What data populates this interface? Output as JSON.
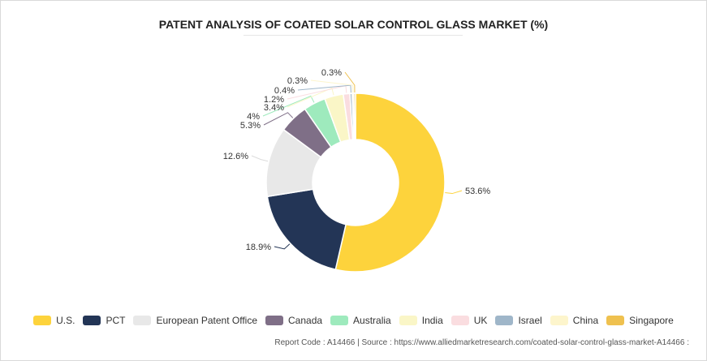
{
  "chart_data": {
    "type": "pie",
    "donut": true,
    "title": "PATENT ANALYSIS OF COATED SOLAR CONTROL GLASS MARKET (%)",
    "categories": [
      "U.S.",
      "PCT",
      "European Patent Office",
      "Canada",
      "Australia",
      "India",
      "UK",
      "Israel",
      "China",
      "Singapore"
    ],
    "values": [
      53.6,
      18.9,
      12.6,
      5.3,
      4,
      3.4,
      1.2,
      0.4,
      0.3,
      0.3
    ],
    "value_labels": [
      "53.6%",
      "18.9%",
      "12.6%",
      "5.3%",
      "4%",
      "3.4%",
      "1.2%",
      "0.4%",
      "0.3%",
      "0.3%"
    ],
    "colors": [
      "#fdd33c",
      "#233556",
      "#e8e8e8",
      "#7f6f87",
      "#9eeabd",
      "#faf6c7",
      "#fadde0",
      "#9fb6c9",
      "#fdf5cc",
      "#efc14f"
    ],
    "legend_position": "bottom"
  },
  "footer_text": "Report Code : A14466  |  Source : https://www.alliedmarketresearch.com/coated-solar-control-glass-market-A14466 :"
}
